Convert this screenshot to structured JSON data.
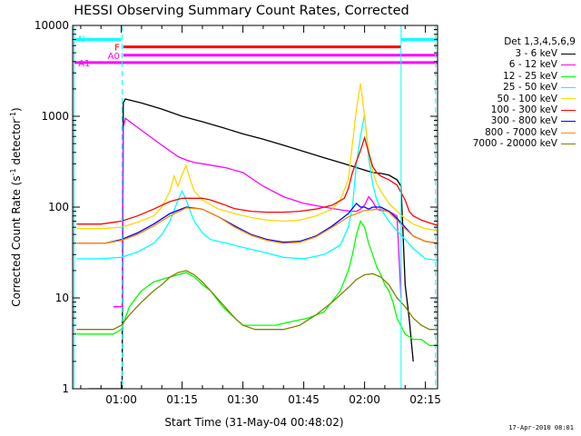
{
  "chart_data": {
    "type": "line",
    "title": "HESSI Observing Summary Count Rates, Corrected",
    "xlabel": "Start Time (31-May-04 00:48:02)",
    "ylabel_main": "Corrected Count Rate (s",
    "ylabel_sup1": "-1",
    "ylabel_mid": " detector",
    "ylabel_sup2": "-1",
    "ylabel_end": ")",
    "y_scale": "log",
    "ylim": [
      1,
      10000
    ],
    "x_range_min": [
      48,
      138
    ],
    "y_ticks": [
      {
        "value": 1,
        "label": "1"
      },
      {
        "value": 10,
        "label": "10"
      },
      {
        "value": 100,
        "label": "100"
      },
      {
        "value": 1000,
        "label": "1000"
      },
      {
        "value": 10000,
        "label": "10000"
      }
    ],
    "x_ticks": [
      {
        "value": 60,
        "label": "01:00"
      },
      {
        "value": 75,
        "label": "01:15"
      },
      {
        "value": 90,
        "label": "01:30"
      },
      {
        "value": 105,
        "label": "01:45"
      },
      {
        "value": 120,
        "label": "02:00"
      },
      {
        "value": 135,
        "label": "02:15"
      }
    ],
    "legend_title": "Det 1,3,4,5,6,9",
    "legend_position": "right",
    "series": [
      {
        "name": "3 - 6 keV",
        "color": "#000000",
        "x": [
          52,
          60.2,
          60.5,
          61,
          65,
          70,
          75,
          80,
          85,
          90,
          95,
          100,
          105,
          110,
          115,
          120,
          122,
          124,
          126,
          128,
          129,
          130,
          131,
          132
        ],
        "y": [
          1,
          1,
          1400,
          1550,
          1400,
          1200,
          1000,
          870,
          750,
          640,
          560,
          480,
          410,
          350,
          300,
          255,
          240,
          235,
          225,
          200,
          170,
          14,
          6,
          2
        ]
      },
      {
        "name": "6 - 12 keV",
        "color": "#ff00ff",
        "x": [
          58,
          60.2,
          60.5,
          61,
          65,
          70,
          74,
          76,
          78,
          80,
          82,
          84,
          86,
          90,
          95,
          100,
          105,
          110,
          115,
          117,
          118,
          119,
          120,
          121,
          122,
          123,
          124,
          126,
          128,
          129
        ],
        "y": [
          8,
          8,
          750,
          950,
          700,
          480,
          360,
          330,
          310,
          300,
          290,
          280,
          270,
          240,
          170,
          130,
          110,
          100,
          92,
          90,
          90,
          95,
          105,
          130,
          115,
          95,
          92,
          90,
          80,
          10
        ]
      },
      {
        "name": "12 - 25 keV",
        "color": "#00ff00",
        "x": [
          49,
          56,
          58,
          60,
          62,
          65,
          68,
          70,
          72,
          74,
          76,
          78,
          80,
          82,
          85,
          88,
          90,
          94,
          98,
          102,
          106,
          110,
          114,
          116,
          117,
          118,
          119,
          120,
          121,
          122,
          123,
          124,
          125,
          126,
          127,
          128,
          130,
          132,
          134,
          136,
          138
        ],
        "y": [
          4,
          4,
          4,
          4.5,
          8,
          12,
          15,
          16,
          17,
          18,
          19,
          17,
          14,
          12,
          8,
          6,
          5,
          5,
          5,
          5.5,
          6,
          7,
          12,
          20,
          30,
          50,
          70,
          60,
          40,
          30,
          22,
          18,
          14,
          12,
          9,
          6,
          4,
          3.5,
          3.5,
          3,
          3
        ]
      },
      {
        "name": "25 - 50 keV",
        "color": "#00ffff",
        "x": [
          49,
          55,
          60,
          64,
          68,
          70,
          72,
          74,
          75,
          76,
          77,
          78,
          80,
          82,
          84,
          86,
          90,
          95,
          100,
          105,
          110,
          114,
          116,
          117,
          118,
          119,
          120,
          121,
          122,
          123,
          124,
          126,
          128,
          130,
          132,
          135,
          138
        ],
        "y": [
          27,
          27,
          28,
          32,
          40,
          50,
          70,
          120,
          150,
          120,
          90,
          70,
          52,
          44,
          42,
          40,
          36,
          32,
          28,
          27,
          30,
          38,
          60,
          100,
          300,
          600,
          1050,
          350,
          180,
          120,
          95,
          70,
          55,
          44,
          35,
          27,
          26
        ]
      },
      {
        "name": "50 - 100 keV",
        "color": "#ffd700",
        "x": [
          49,
          55,
          60,
          64,
          68,
          70,
          72,
          73,
          74,
          75,
          76,
          77,
          78,
          80,
          84,
          88,
          92,
          96,
          100,
          104,
          108,
          112,
          114,
          116,
          117,
          118,
          119,
          120,
          121,
          122,
          123,
          124,
          126,
          128,
          130,
          132,
          135,
          138
        ],
        "y": [
          58,
          58,
          60,
          68,
          80,
          100,
          150,
          220,
          170,
          230,
          285,
          200,
          150,
          120,
          95,
          85,
          77,
          72,
          70,
          72,
          80,
          95,
          120,
          200,
          500,
          1200,
          2300,
          1000,
          400,
          250,
          180,
          150,
          110,
          90,
          75,
          65,
          58,
          55
        ]
      },
      {
        "name": "100 - 300 keV",
        "color": "#ff0000",
        "x": [
          49,
          55,
          60,
          64,
          68,
          72,
          75,
          76,
          78,
          80,
          82,
          85,
          88,
          92,
          96,
          100,
          104,
          108,
          112,
          115,
          116,
          117,
          118,
          119,
          120,
          121,
          122,
          123,
          124,
          126,
          128,
          130,
          131,
          132,
          134,
          136,
          138
        ],
        "y": [
          65,
          65,
          70,
          80,
          95,
          115,
          125,
          125,
          125,
          125,
          120,
          108,
          96,
          90,
          88,
          88,
          90,
          95,
          105,
          125,
          160,
          240,
          320,
          420,
          580,
          400,
          280,
          240,
          220,
          200,
          175,
          120,
          90,
          80,
          72,
          67,
          63
        ]
      },
      {
        "name": "300 - 800 keV",
        "color": "#0000ff",
        "x": [
          49,
          56,
          60,
          64,
          68,
          72,
          76,
          80,
          84,
          88,
          92,
          96,
          100,
          104,
          108,
          112,
          116,
          118,
          119,
          120,
          121,
          122,
          124,
          126,
          128,
          130,
          132,
          135,
          138
        ],
        "y": [
          40,
          40,
          44,
          52,
          65,
          85,
          100,
          95,
          78,
          62,
          50,
          44,
          41,
          42,
          48,
          62,
          85,
          110,
          100,
          100,
          95,
          100,
          100,
          90,
          75,
          60,
          48,
          42,
          40
        ]
      },
      {
        "name": "800 - 7000 keV",
        "color": "#ff8c00",
        "x": [
          49,
          56,
          60,
          64,
          68,
          72,
          76,
          80,
          84,
          88,
          92,
          96,
          100,
          104,
          108,
          112,
          116,
          120,
          124,
          126,
          128,
          130,
          132,
          135,
          138
        ],
        "y": [
          40,
          40,
          43,
          50,
          62,
          80,
          98,
          95,
          78,
          60,
          49,
          43,
          40,
          41,
          47,
          60,
          78,
          92,
          95,
          88,
          72,
          58,
          48,
          42,
          40
        ]
      },
      {
        "name": "7000 - 20000 keV",
        "color": "#808000",
        "x": [
          49,
          55,
          58,
          60,
          62,
          65,
          68,
          70,
          72,
          74,
          76,
          78,
          80,
          82,
          85,
          88,
          90,
          93,
          96,
          100,
          104,
          108,
          112,
          116,
          118,
          120,
          122,
          124,
          126,
          128,
          130,
          132,
          134,
          136,
          138
        ],
        "y": [
          4.5,
          4.5,
          4.5,
          5,
          6.5,
          9,
          12,
          14,
          17,
          19,
          20,
          18,
          15,
          12,
          8.5,
          6,
          5,
          4.5,
          4.5,
          4.5,
          5,
          6.5,
          9,
          13,
          16,
          18,
          18.5,
          17,
          14,
          10,
          8,
          6,
          5,
          4.5,
          4.5
        ]
      }
    ],
    "bars": [
      {
        "label": "N",
        "color": "#00ffff",
        "x0": 48.5,
        "x1": 60,
        "y": 7000
      },
      {
        "label": "",
        "color": "#00ffff",
        "x0": 129,
        "x1": 138,
        "y": 7000
      },
      {
        "label": "F",
        "color": "#ff0000",
        "x0": 60.5,
        "x1": 129,
        "y": 5800
      },
      {
        "label": "A0",
        "color": "#ff00ff",
        "x0": 60.5,
        "x1": 138,
        "y": 4700
      },
      {
        "label": "A1",
        "color": "#ff00ff",
        "x0": 48.5,
        "x1": 138,
        "y": 3900
      }
    ],
    "vlines": [
      {
        "x": 48.3,
        "color": "#00ffff",
        "style": "solid"
      },
      {
        "x": 60.2,
        "color": "#00ffff",
        "style": "dashed"
      },
      {
        "x": 129,
        "color": "#00ffff",
        "style": "solid"
      },
      {
        "x": 137.5,
        "color": "#00ffff",
        "style": "dashed"
      }
    ]
  },
  "footer": {
    "timestamp": "17-Apr-2010 08:01"
  }
}
